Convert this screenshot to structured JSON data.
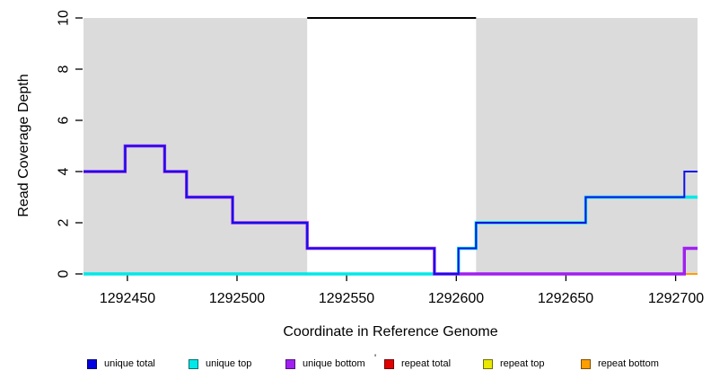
{
  "chart_data": {
    "type": "line",
    "subtype": "step-coverage",
    "title": "",
    "xlabel": "Coordinate in Reference Genome",
    "ylabel": "Read Coverage Depth",
    "xlim": [
      1292430,
      1292710
    ],
    "ylim": [
      0,
      10
    ],
    "grid": false,
    "x_ticks": [
      {
        "value": 1292450,
        "label": "1292450"
      },
      {
        "value": 1292500,
        "label": "1292500"
      },
      {
        "value": 1292550,
        "label": "1292550"
      },
      {
        "value": 1292600,
        "label": "1292600"
      },
      {
        "value": 1292650,
        "label": "1292650"
      },
      {
        "value": 1292700,
        "label": "1292700"
      }
    ],
    "y_ticks": [
      {
        "value": 0,
        "label": "0"
      },
      {
        "value": 2,
        "label": "2"
      },
      {
        "value": 4,
        "label": "4"
      },
      {
        "value": 6,
        "label": "6"
      },
      {
        "value": 8,
        "label": "8"
      },
      {
        "value": 10,
        "label": "10"
      }
    ],
    "shading_color": "#DBDBDB",
    "shaded_regions": [
      {
        "from": 1292430,
        "to": 1292532
      },
      {
        "from": 1292609,
        "to": 1292710
      }
    ],
    "top_reference_line": {
      "y": 10,
      "from": 1292532,
      "to": 1292609,
      "color": "#000000"
    },
    "series": [
      {
        "name": "repeat total",
        "color": "#E00000",
        "width": 2,
        "points": [
          [
            1292430,
            0
          ]
        ]
      },
      {
        "name": "repeat top",
        "color": "#E8E800",
        "width": 2,
        "points": [
          [
            1292430,
            0
          ]
        ]
      },
      {
        "name": "repeat bottom",
        "color": "#FF9E00",
        "width": 2,
        "points": [
          [
            1292430,
            0
          ]
        ]
      },
      {
        "name": "unique top",
        "color": "#00E8E8",
        "width": 3.4,
        "points": [
          [
            1292430,
            0
          ],
          [
            1292601,
            1
          ],
          [
            1292609,
            2
          ],
          [
            1292659,
            3
          ]
        ]
      },
      {
        "name": "unique bottom",
        "color": "#A020F0",
        "width": 3.4,
        "points": [
          [
            1292430,
            4
          ],
          [
            1292449,
            5
          ],
          [
            1292467,
            4
          ],
          [
            1292477,
            3
          ],
          [
            1292498,
            2
          ],
          [
            1292532,
            1
          ],
          [
            1292590,
            0
          ],
          [
            1292704,
            1
          ]
        ]
      },
      {
        "name": "unique total",
        "color": "#1010E8",
        "width": 2,
        "points": [
          [
            1292430,
            4
          ],
          [
            1292449,
            5
          ],
          [
            1292467,
            4
          ],
          [
            1292477,
            3
          ],
          [
            1292498,
            2
          ],
          [
            1292532,
            1
          ],
          [
            1292590,
            0
          ],
          [
            1292601,
            1
          ],
          [
            1292609,
            2
          ],
          [
            1292659,
            3
          ],
          [
            1292704,
            4
          ]
        ]
      }
    ],
    "legend": {
      "position": "bottom",
      "items": [
        {
          "label": "unique total",
          "fill": "#0000E0",
          "border": "#00006E"
        },
        {
          "label": "unique top",
          "fill": "#00E8E8",
          "border": "#006E6E"
        },
        {
          "label": "unique bottom",
          "fill": "#A020F0",
          "border": "#551080"
        },
        {
          "label": "repeat total",
          "fill": "#E00000",
          "border": "#6E0000"
        },
        {
          "label": "repeat top",
          "fill": "#E8E800",
          "border": "#6E6E00"
        },
        {
          "label": "repeat bottom",
          "fill": "#FF9E00",
          "border": "#7A4E00"
        }
      ],
      "stray_mark": "'"
    }
  }
}
